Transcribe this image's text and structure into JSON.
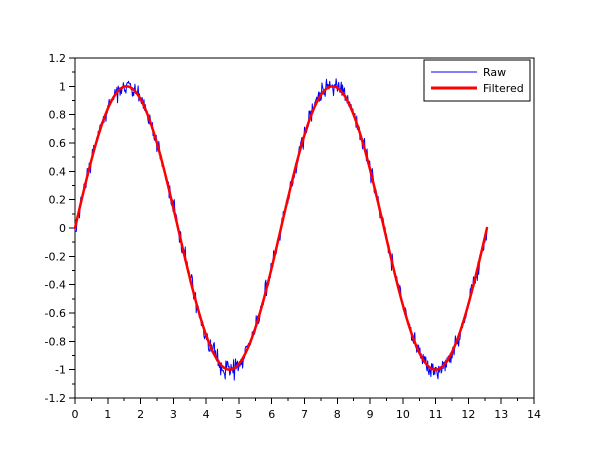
{
  "window": {
    "background_color": "#ffffff"
  },
  "chart_data": {
    "type": "line",
    "title": "",
    "xlabel": "",
    "ylabel": "",
    "xlim": [
      0,
      14
    ],
    "ylim": [
      -1.2,
      1.2
    ],
    "grid": false,
    "frame_color": "#000000",
    "plot_background": "#ffffff",
    "x_ticks": {
      "major_step": 1,
      "minor_step": 0.5,
      "labels": [
        "0",
        "1",
        "2",
        "3",
        "4",
        "5",
        "6",
        "7",
        "8",
        "9",
        "10",
        "11",
        "12",
        "13",
        "14"
      ]
    },
    "y_ticks": {
      "major_step": 0.2,
      "minor_step": 0.1,
      "labels": [
        "-1.2",
        "-1",
        "-0.8",
        "-0.6",
        "-0.4",
        "-0.2",
        "0",
        "0.2",
        "0.4",
        "0.6",
        "0.8",
        "1",
        "1.2"
      ]
    },
    "series": [
      {
        "name": "Raw",
        "color": "#0000ff",
        "line_width": 1,
        "function": "sin(x) + noise",
        "x_start": 0,
        "x_end": 12.566,
        "n_points": 640,
        "amplitude": 1,
        "noise_amplitude": 0.1
      },
      {
        "name": "Filtered",
        "color": "#ff0000",
        "line_width": 2.5,
        "function": "sin(x)",
        "x_start": 0,
        "x_end": 12.566,
        "n_points": 400,
        "amplitude": 1,
        "noise_amplitude": 0
      }
    ],
    "legend": {
      "position": "upper-right",
      "border_color": "#000000",
      "background": "#ffffff",
      "entries": [
        {
          "label": "Raw",
          "color": "#0000ff",
          "sample_line_width": 1
        },
        {
          "label": "Filtered",
          "color": "#ff0000",
          "sample_line_width": 3
        }
      ]
    }
  }
}
